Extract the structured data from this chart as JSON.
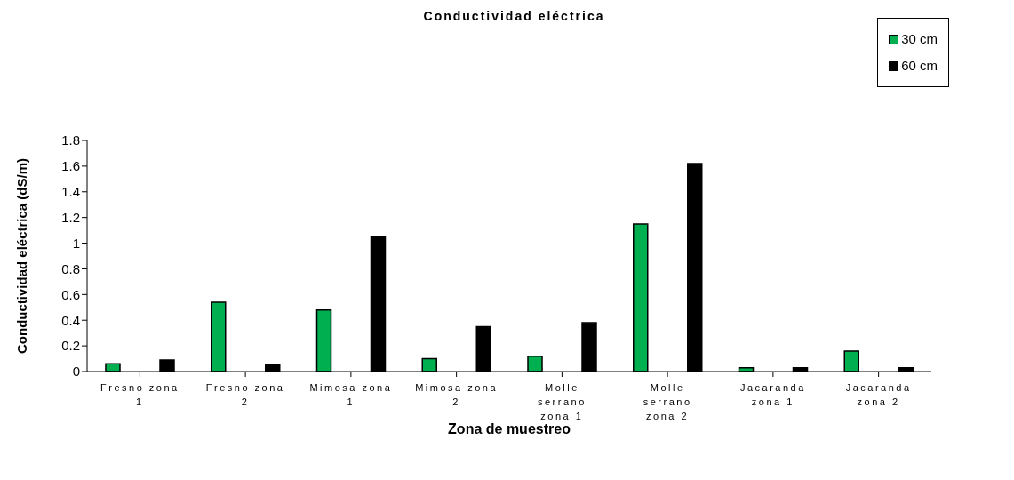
{
  "chart_data": {
    "type": "bar",
    "title": "Conductividad eléctrica",
    "xlabel": "Zona de muestreo",
    "ylabel": "Conductividad eléctrica (dS/m)",
    "categories": [
      "Fresno zona 1",
      "Fresno zona 2",
      "Mimosa zona 1",
      "Mimosa zona 2",
      "Molle serrano zona 1",
      "Molle serrano zona 2",
      "Jacaranda zona 1",
      "Jacaranda zona 2"
    ],
    "series": [
      {
        "name": "30 cm",
        "color": "#00b050",
        "values": [
          0.06,
          0.54,
          0.48,
          0.1,
          0.12,
          1.15,
          0.03,
          0.16
        ]
      },
      {
        "name": "60 cm",
        "color": "#000000",
        "values": [
          0.09,
          0.05,
          1.05,
          0.35,
          0.38,
          1.62,
          0.03,
          0.03
        ]
      }
    ],
    "ylim": [
      0,
      1.8
    ],
    "yticks": [
      0,
      0.2,
      0.4,
      0.6,
      0.8,
      1,
      1.2,
      1.4,
      1.6,
      1.8
    ],
    "legend": "top right"
  }
}
